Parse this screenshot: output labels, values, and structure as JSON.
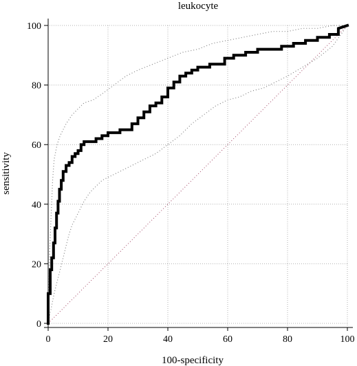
{
  "chart_data": {
    "type": "line",
    "title": "leukocyte",
    "xlabel": "100-specificity",
    "ylabel": "sensitivity",
    "xlim": [
      0,
      100
    ],
    "ylim": [
      0,
      100
    ],
    "x_ticks": [
      "0",
      "20",
      "40",
      "60",
      "80",
      "100"
    ],
    "y_ticks": [
      "0",
      "20",
      "40",
      "60",
      "80",
      "100"
    ],
    "grid": true,
    "legend": "none",
    "colors": {
      "roc": "#000000",
      "ci": "#808080",
      "reference": "#a04060",
      "grid": "#b0b0b0"
    },
    "series": [
      {
        "role": "roc",
        "style": "thick-step",
        "x": [
          0,
          0,
          0.7,
          0.7,
          1.2,
          1.2,
          1.8,
          1.8,
          2.3,
          2.3,
          2.8,
          2.8,
          3.3,
          3.3,
          3.8,
          3.8,
          4.4,
          4.4,
          5,
          5,
          6,
          6,
          7,
          7,
          8,
          8,
          9,
          9,
          10,
          10,
          11,
          11,
          12,
          12,
          14,
          14,
          16,
          16,
          18,
          18,
          20,
          20,
          22,
          22,
          24,
          24,
          26,
          26,
          28,
          28,
          30,
          30,
          32,
          32,
          34,
          34,
          36,
          36,
          38,
          38,
          40,
          40,
          42,
          42,
          44,
          44,
          46,
          46,
          48,
          48,
          50,
          50,
          52,
          52,
          54,
          54,
          56,
          56,
          59,
          59,
          62,
          62,
          66,
          66,
          70,
          70,
          74,
          74,
          78,
          78,
          82,
          82,
          86,
          86,
          90,
          90,
          94,
          94,
          97,
          97,
          100
        ],
        "y": [
          0,
          10,
          10,
          18,
          18,
          22,
          22,
          27,
          27,
          32,
          32,
          37,
          37,
          41,
          41,
          45,
          45,
          48,
          48,
          51,
          51,
          53,
          53,
          54,
          54,
          56,
          56,
          57,
          57,
          58,
          58,
          60,
          60,
          61,
          61,
          61,
          61,
          62,
          62,
          63,
          63,
          64,
          64,
          64,
          64,
          65,
          65,
          65,
          65,
          67,
          67,
          69,
          69,
          71,
          71,
          73,
          73,
          74,
          74,
          76,
          76,
          79,
          79,
          81,
          81,
          83,
          83,
          84,
          84,
          85,
          85,
          86,
          86,
          86,
          86,
          87,
          87,
          87,
          87,
          89,
          89,
          90,
          90,
          91,
          91,
          92,
          92,
          92,
          92,
          93,
          93,
          94,
          94,
          95,
          95,
          96,
          96,
          97,
          97,
          99,
          100
        ]
      },
      {
        "role": "ci-upper",
        "style": "dotted",
        "x": [
          0,
          0.5,
          1,
          1.5,
          2,
          3,
          4,
          5,
          6,
          8,
          10,
          12,
          15,
          18,
          22,
          26,
          30,
          35,
          40,
          45,
          50,
          55,
          60,
          65,
          70,
          75,
          80,
          85,
          90,
          95,
          100
        ],
        "y": [
          0,
          24,
          36,
          48,
          55,
          60,
          63,
          65,
          67,
          70,
          72,
          74,
          75,
          77,
          80,
          83,
          85,
          87,
          89,
          91,
          92,
          94,
          95,
          96,
          97,
          98,
          98,
          99,
          99,
          100,
          100
        ]
      },
      {
        "role": "ci-lower",
        "style": "dotted",
        "x": [
          0,
          1,
          2,
          3,
          4,
          5,
          6,
          7,
          8,
          9,
          10,
          12,
          14,
          16,
          18,
          20,
          24,
          28,
          32,
          36,
          40,
          44,
          48,
          52,
          56,
          60,
          64,
          68,
          72,
          76,
          80,
          85,
          90,
          95,
          100
        ],
        "y": [
          0,
          5,
          10,
          14,
          18,
          22,
          26,
          30,
          33,
          35,
          37,
          41,
          44,
          46,
          48,
          49,
          51,
          53,
          55,
          57,
          60,
          63,
          67,
          70,
          73,
          75,
          76,
          78,
          79,
          81,
          83,
          86,
          89,
          93,
          100
        ]
      },
      {
        "role": "reference",
        "style": "dotted",
        "x": [
          0,
          100
        ],
        "y": [
          0,
          100
        ]
      }
    ]
  }
}
